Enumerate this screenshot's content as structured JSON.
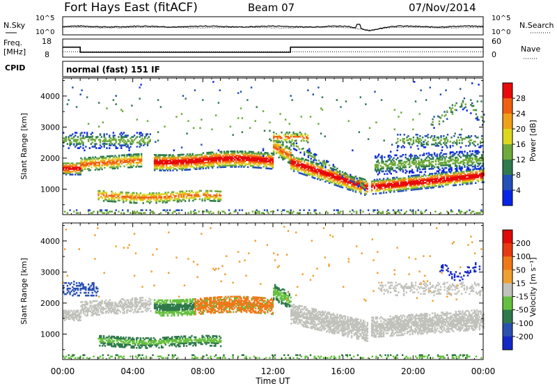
{
  "header": {
    "station": "Fort Hays East (fitACF)",
    "beam": "Beam 07",
    "date": "07/Nov/2014"
  },
  "chart_data": [
    {
      "type": "line",
      "panel": "noise",
      "left_label": "N.Sky",
      "right_label": "N.Search",
      "left_ticks": [
        "10^5",
        "10^0"
      ],
      "right_ticks": [
        "10^5",
        "10^0"
      ],
      "sky_level": 2.3,
      "search_level": 2.0,
      "dip": {
        "time": 17.5,
        "level": 1.3
      },
      "spike": {
        "time": 16.9,
        "level": 2.9
      }
    },
    {
      "type": "line",
      "panel": "frequency",
      "left_label_lines": [
        "Freq.",
        "[MHz]"
      ],
      "right_label": "Nave",
      "left_ticks": [
        "18",
        "8"
      ],
      "right_ticks": [
        "60",
        "0"
      ],
      "freq_steps": [
        {
          "t0": 0.0,
          "t1": 1.0,
          "value": 13.5
        },
        {
          "t0": 1.0,
          "t1": 13.0,
          "value": 10.7
        },
        {
          "t0": 13.0,
          "t1": 24.0,
          "value": 13.5
        }
      ],
      "nave_value": 18
    },
    {
      "type": "table",
      "panel": "cpid",
      "label": "CPID",
      "text": "normal (fast) 151 IF"
    },
    {
      "type": "heatmap",
      "panel": "power",
      "ylabel": "Slant Range [km]",
      "y_ticks": [
        1000,
        2000,
        3000,
        4000
      ],
      "ylim": [
        180,
        4580
      ],
      "colorbar_label": "Power [dB]",
      "colorbar_ticks": [
        "28",
        "24",
        "20",
        "16",
        "12",
        "8",
        "4"
      ],
      "colors": [
        "#0a24e6",
        "#234fb8",
        "#2f7a4e",
        "#6faa3c",
        "#ddd720",
        "#f0a018",
        "#f06010",
        "#e80a0a"
      ]
    },
    {
      "type": "heatmap",
      "panel": "velocity",
      "ylabel": "Slant Range [km]",
      "y_ticks": [
        1000,
        2000,
        3000,
        4000
      ],
      "ylim": [
        180,
        4580
      ],
      "colorbar_label": "Velocity [m s⁻¹]",
      "colorbar_ticks": [
        "200",
        "100",
        "50",
        "15",
        "-15",
        "-50",
        "-100",
        "-200"
      ],
      "colors": [
        "#1428c8",
        "#2a50b0",
        "#2f7a4a",
        "#66c040",
        "#c2c2bc",
        "#f0a030",
        "#f07818",
        "#e83a10",
        "#e00a0a"
      ]
    }
  ],
  "xaxis": {
    "label": "Time UT",
    "ticks": [
      "00:00",
      "04:00",
      "08:00",
      "12:00",
      "16:00",
      "20:00",
      "00:00"
    ],
    "range": [
      0,
      24
    ]
  }
}
